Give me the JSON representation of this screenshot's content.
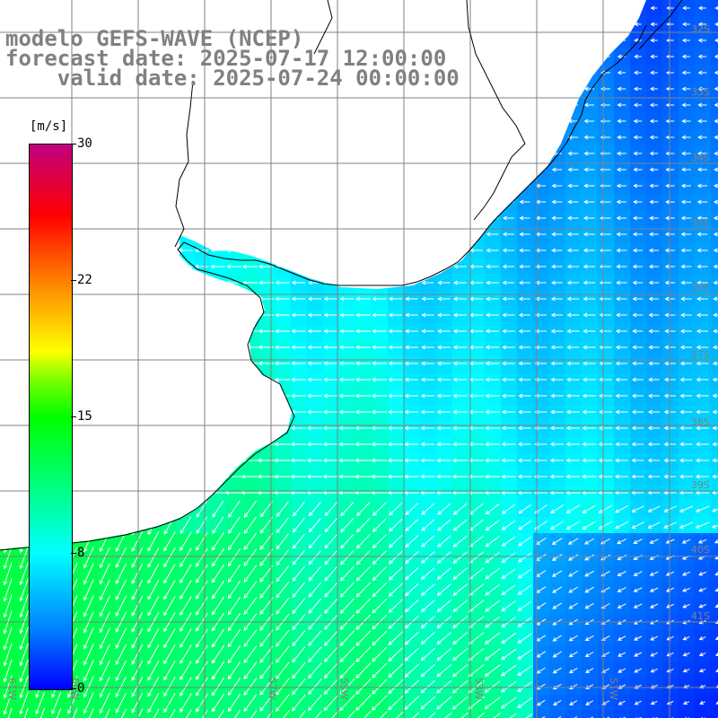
{
  "title": {
    "line1": "modelo GEFS-WAVE (NCEP)",
    "line2": "forecast date: 2025-07-17 12:00:00",
    "line3": "    valid date: 2025-07-24 00:00:00"
  },
  "colorbar": {
    "unit": "[m/s]",
    "ticks": [
      "30",
      "22",
      "15",
      "8",
      "0"
    ],
    "colors": [
      "#0000ff",
      "#0080ff",
      "#00ffff",
      "#00ff80",
      "#00ff00",
      "#ffff00",
      "#ff8000",
      "#ff0000",
      "#c00080"
    ]
  },
  "grid": {
    "lon_labels": [
      "61W",
      "60W",
      "57W",
      "55W",
      "53W",
      "51W"
    ],
    "lat_labels": [
      "32S",
      "33S",
      "34S",
      "35S",
      "36S",
      "37S",
      "38S",
      "39S",
      "40S",
      "41S"
    ]
  },
  "field": {
    "description_values": "wind speed, m/s",
    "ocean_speed_range": [
      1,
      14
    ],
    "land_color": "#ffffff",
    "gridline_color": "#808080",
    "coast_color": "#000000"
  }
}
